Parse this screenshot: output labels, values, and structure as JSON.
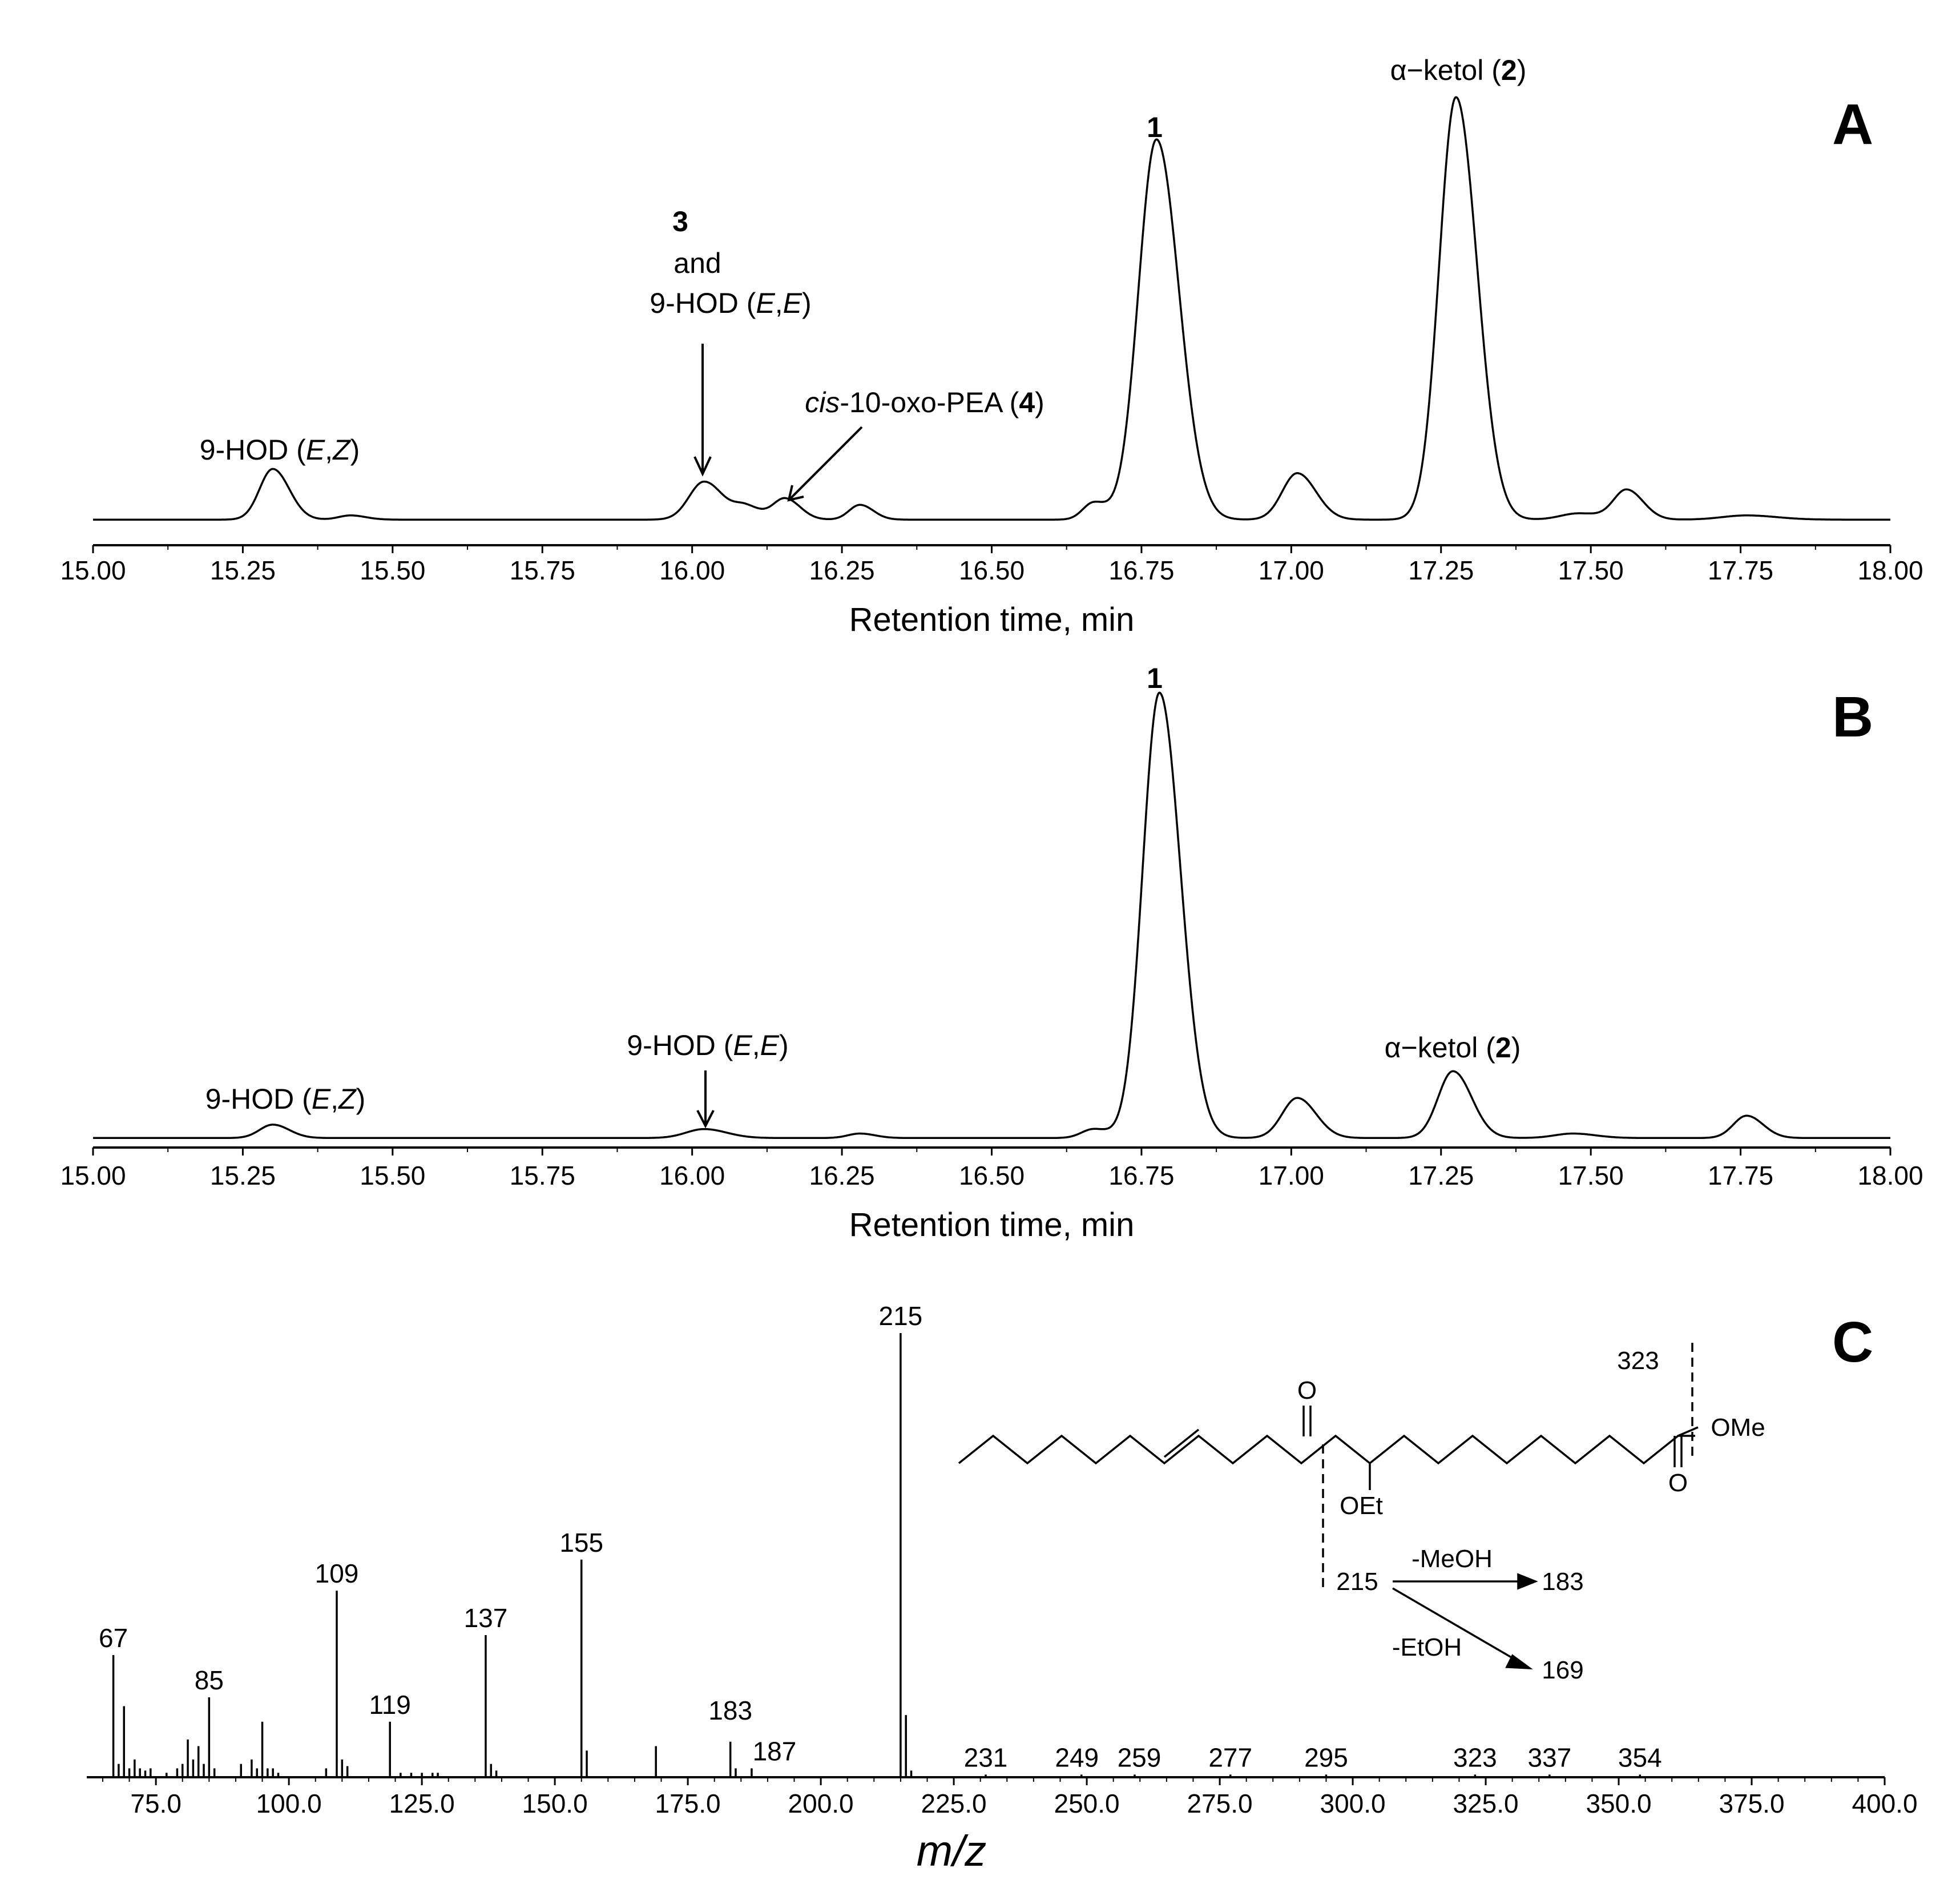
{
  "chart_data": [
    {
      "panel": "A",
      "type": "line",
      "xlabel": "Retention time, min",
      "ylabel": "",
      "xlim": [
        15.0,
        18.0
      ],
      "x_ticks": [
        "15.00",
        "15.25",
        "15.50",
        "15.75",
        "16.00",
        "16.25",
        "16.50",
        "16.75",
        "17.00",
        "17.25",
        "17.50",
        "17.75",
        "18.00"
      ],
      "baseline": 0.02,
      "peaks": [
        {
          "rt": 15.3,
          "height": 0.12,
          "width": 0.022
        },
        {
          "rt": 15.43,
          "height": 0.01,
          "width": 0.02
        },
        {
          "rt": 16.02,
          "height": 0.09,
          "width": 0.025
        },
        {
          "rt": 16.09,
          "height": 0.03,
          "width": 0.02
        },
        {
          "rt": 16.155,
          "height": 0.05,
          "width": 0.02
        },
        {
          "rt": 16.28,
          "height": 0.035,
          "width": 0.018
        },
        {
          "rt": 16.67,
          "height": 0.04,
          "width": 0.018
        },
        {
          "rt": 16.775,
          "height": 0.9,
          "width": 0.03
        },
        {
          "rt": 17.01,
          "height": 0.11,
          "width": 0.025
        },
        {
          "rt": 17.275,
          "height": 1.0,
          "width": 0.028
        },
        {
          "rt": 17.48,
          "height": 0.015,
          "width": 0.03
        },
        {
          "rt": 17.56,
          "height": 0.07,
          "width": 0.022
        },
        {
          "rt": 17.76,
          "height": 0.01,
          "width": 0.04
        }
      ],
      "annotations": [
        {
          "id": "a-hod-ez",
          "parts": [
            [
              "9-HOD (",
              ""
            ],
            [
              "E",
              "i"
            ],
            [
              ",",
              ""
            ],
            [
              "Z",
              "i"
            ],
            [
              ")",
              ""
            ]
          ]
        },
        {
          "id": "a-3",
          "parts": [
            [
              "3",
              "b"
            ]
          ]
        },
        {
          "id": "a-and",
          "parts": [
            [
              "and",
              ""
            ]
          ]
        },
        {
          "id": "a-hod-ee",
          "parts": [
            [
              "9-HOD (",
              ""
            ],
            [
              "E",
              "i"
            ],
            [
              ",",
              ""
            ],
            [
              "E",
              "i"
            ],
            [
              ")",
              ""
            ]
          ]
        },
        {
          "id": "a-oxo",
          "parts": [
            [
              "cis",
              "i"
            ],
            [
              "-10-oxo-PEA (",
              ""
            ],
            [
              "4",
              "b"
            ],
            [
              ")",
              ""
            ]
          ]
        },
        {
          "id": "a-1",
          "parts": [
            [
              "1",
              "b"
            ]
          ]
        },
        {
          "id": "a-ketol",
          "parts": [
            [
              "α−ketol (",
              ""
            ],
            [
              "2",
              "b"
            ],
            [
              ")",
              ""
            ]
          ]
        }
      ]
    },
    {
      "panel": "B",
      "type": "line",
      "xlabel": "Retention time, min",
      "ylabel": "",
      "xlim": [
        15.0,
        18.0
      ],
      "x_ticks": [
        "15.00",
        "15.25",
        "15.50",
        "15.75",
        "16.00",
        "16.25",
        "16.50",
        "16.75",
        "17.00",
        "17.25",
        "17.50",
        "17.75",
        "18.00"
      ],
      "baseline": 0.015,
      "peaks": [
        {
          "rt": 15.3,
          "height": 0.03,
          "width": 0.022
        },
        {
          "rt": 16.02,
          "height": 0.02,
          "width": 0.03
        },
        {
          "rt": 16.28,
          "height": 0.01,
          "width": 0.02
        },
        {
          "rt": 16.67,
          "height": 0.02,
          "width": 0.02
        },
        {
          "rt": 16.78,
          "height": 1.0,
          "width": 0.028
        },
        {
          "rt": 17.01,
          "height": 0.09,
          "width": 0.025
        },
        {
          "rt": 17.27,
          "height": 0.15,
          "width": 0.025
        },
        {
          "rt": 17.47,
          "height": 0.01,
          "width": 0.03
        },
        {
          "rt": 17.76,
          "height": 0.05,
          "width": 0.022
        }
      ],
      "annotations": [
        {
          "id": "b-hod-ez",
          "parts": [
            [
              "9-HOD (",
              ""
            ],
            [
              "E",
              "i"
            ],
            [
              ",",
              ""
            ],
            [
              "Z",
              "i"
            ],
            [
              ")",
              ""
            ]
          ]
        },
        {
          "id": "b-hod-ee",
          "parts": [
            [
              "9-HOD (",
              ""
            ],
            [
              "E",
              "i"
            ],
            [
              ",",
              ""
            ],
            [
              "E",
              "i"
            ],
            [
              ")",
              ""
            ]
          ]
        },
        {
          "id": "b-1",
          "parts": [
            [
              "1",
              "b"
            ]
          ]
        },
        {
          "id": "b-ketol",
          "parts": [
            [
              "α−ketol (",
              ""
            ],
            [
              "2",
              "b"
            ],
            [
              ")",
              ""
            ]
          ]
        }
      ]
    },
    {
      "panel": "C",
      "type": "bar",
      "xlabel": "m/z",
      "ylabel": "",
      "xlim": [
        62,
        400
      ],
      "ylim": [
        0,
        100
      ],
      "x_ticks": [
        "75.0",
        "100.0",
        "125.0",
        "150.0",
        "175.0",
        "200.0",
        "225.0",
        "250.0",
        "275.0",
        "300.0",
        "325.0",
        "350.0",
        "375.0",
        "400.0"
      ],
      "ions": [
        [
          67,
          27.5
        ],
        [
          68,
          3
        ],
        [
          69,
          16
        ],
        [
          70,
          2
        ],
        [
          71,
          4
        ],
        [
          72,
          2
        ],
        [
          73,
          1.5
        ],
        [
          74,
          2
        ],
        [
          77,
          1
        ],
        [
          79,
          2
        ],
        [
          80,
          3
        ],
        [
          81,
          8.5
        ],
        [
          82,
          4
        ],
        [
          83,
          7
        ],
        [
          84,
          3
        ],
        [
          85,
          18
        ],
        [
          86,
          2
        ],
        [
          91,
          3
        ],
        [
          93,
          4
        ],
        [
          94,
          2
        ],
        [
          95,
          12.5
        ],
        [
          96,
          2
        ],
        [
          97,
          2
        ],
        [
          98,
          1
        ],
        [
          107,
          2
        ],
        [
          109,
          42
        ],
        [
          110,
          4
        ],
        [
          111,
          2.5
        ],
        [
          119,
          12.5
        ],
        [
          121,
          1
        ],
        [
          123,
          1
        ],
        [
          125,
          1
        ],
        [
          127,
          1
        ],
        [
          128,
          1
        ],
        [
          137,
          32
        ],
        [
          138,
          3
        ],
        [
          139,
          1.5
        ],
        [
          155,
          49
        ],
        [
          156,
          6
        ],
        [
          169,
          7
        ],
        [
          183,
          8
        ],
        [
          184,
          2
        ],
        [
          187,
          2
        ],
        [
          215,
          100
        ],
        [
          216,
          14
        ],
        [
          217,
          1.5
        ],
        [
          231,
          0.6
        ],
        [
          249,
          0.6
        ],
        [
          259,
          0.6
        ],
        [
          277,
          0.6
        ],
        [
          295,
          0.6
        ],
        [
          323,
          0.6
        ],
        [
          337,
          0.6
        ],
        [
          354,
          0.6
        ]
      ],
      "labels": [
        {
          "mz": 67,
          "text": "67"
        },
        {
          "mz": 85,
          "text": "85"
        },
        {
          "mz": 109,
          "text": "109"
        },
        {
          "mz": 119,
          "text": "119"
        },
        {
          "mz": 137,
          "text": "137"
        },
        {
          "mz": 155,
          "text": "155"
        },
        {
          "mz": 183,
          "text": "183"
        },
        {
          "mz": 187,
          "text": "187"
        },
        {
          "mz": 215,
          "text": "215"
        },
        {
          "mz": 231,
          "text": "231"
        },
        {
          "mz": 249,
          "text": "249"
        },
        {
          "mz": 259,
          "text": "259"
        },
        {
          "mz": 277,
          "text": "277"
        },
        {
          "mz": 295,
          "text": "295"
        },
        {
          "mz": 323,
          "text": "323"
        },
        {
          "mz": 337,
          "text": "337"
        },
        {
          "mz": 354,
          "text": "354"
        }
      ],
      "structure": {
        "frag_323": "323",
        "ketone_o": "O",
        "ester_o": "O",
        "ome": "OMe",
        "oet": "OEt",
        "frag_215": "215",
        "loss_meoh": "-MeOH",
        "frag_183": "183",
        "loss_etoh": "-EtOH",
        "frag_169": "169"
      }
    }
  ],
  "panels": {
    "a": "A",
    "b": "B",
    "c": "C"
  }
}
